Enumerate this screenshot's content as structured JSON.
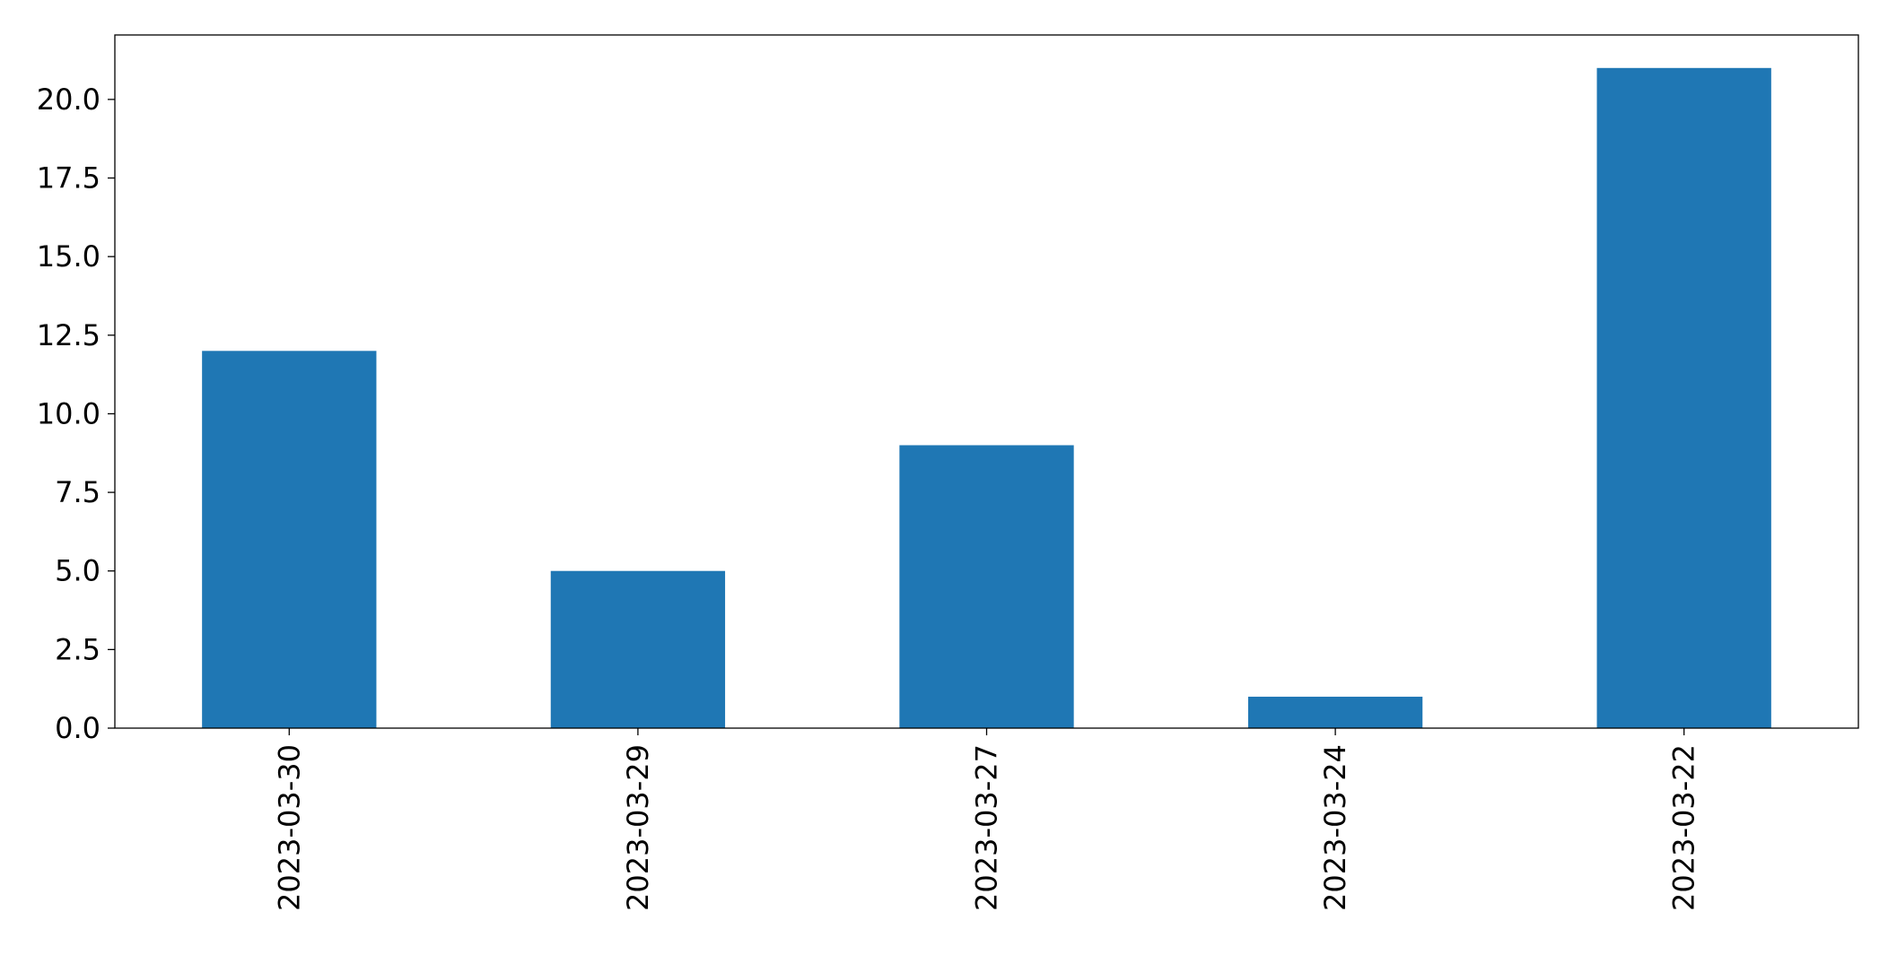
{
  "chart_data": {
    "type": "bar",
    "title": "",
    "xlabel": "",
    "ylabel": "",
    "categories": [
      "2023-03-30",
      "2023-03-29",
      "2023-03-27",
      "2023-03-24",
      "2023-03-22"
    ],
    "values": [
      12,
      5,
      9,
      1,
      21
    ],
    "ylim": [
      0,
      22.05
    ],
    "y_ticks": [
      0.0,
      2.5,
      5.0,
      7.5,
      10.0,
      12.5,
      15.0,
      17.5,
      20.0
    ],
    "y_tick_labels": [
      "0.0",
      "2.5",
      "5.0",
      "7.5",
      "10.0",
      "12.5",
      "15.0",
      "17.5",
      "20.0"
    ],
    "grid": false,
    "legend": "none",
    "bar_color": "#1f77b4",
    "x_tick_rotation": "vertical"
  }
}
